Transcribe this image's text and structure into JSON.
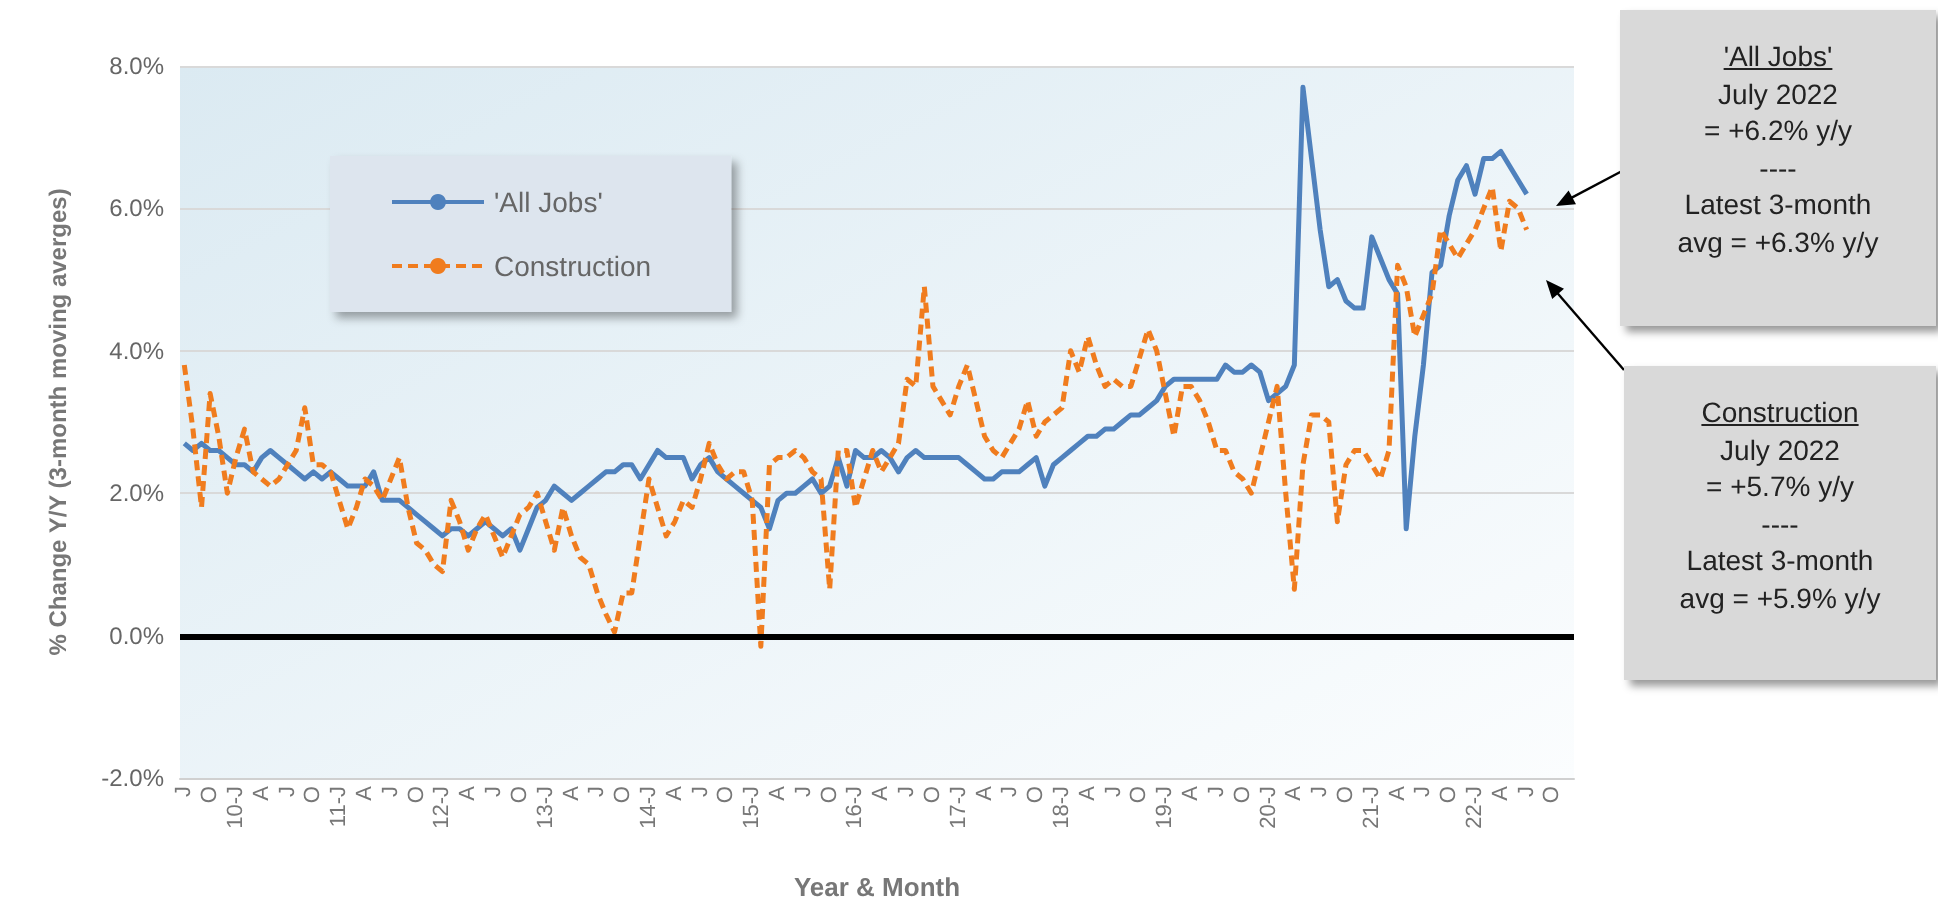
{
  "chart_data": {
    "type": "line",
    "xlabel": "Year & Month",
    "ylabel": "% Change Y/Y (3-month moving averges)",
    "categories": [
      "J",
      null,
      null,
      "O",
      null,
      null,
      "10-J",
      null,
      null,
      "A",
      null,
      null,
      "J",
      null,
      null,
      "O",
      null,
      null,
      "11-J",
      null,
      null,
      "A",
      null,
      null,
      "J",
      null,
      null,
      "O",
      null,
      null,
      "12-J",
      null,
      null,
      "A",
      null,
      null,
      "J",
      null,
      null,
      "O",
      null,
      null,
      "13-J",
      null,
      null,
      "A",
      null,
      null,
      "J",
      null,
      null,
      "O",
      null,
      null,
      "14-J",
      null,
      null,
      "A",
      null,
      null,
      "J",
      null,
      null,
      "O",
      null,
      null,
      "15-J",
      null,
      null,
      "A",
      null,
      null,
      "J",
      null,
      null,
      "O",
      null,
      null,
      "16-J",
      null,
      null,
      "A",
      null,
      null,
      "J",
      null,
      null,
      "O",
      null,
      null,
      "17-J",
      null,
      null,
      "A",
      null,
      null,
      "J",
      null,
      null,
      "O",
      null,
      null,
      "18-J",
      null,
      null,
      "A",
      null,
      null,
      "J",
      null,
      null,
      "O",
      null,
      null,
      "19-J",
      null,
      null,
      "A",
      null,
      null,
      "J",
      null,
      null,
      "O",
      null,
      null,
      "20-J",
      null,
      null,
      "A",
      null,
      null,
      "J",
      null,
      null,
      "O",
      null,
      null,
      "21-J",
      null,
      null,
      "A",
      null,
      null,
      "J",
      null,
      null,
      "O",
      null,
      null,
      "22-J",
      null,
      null,
      "A",
      null,
      null,
      "J",
      null,
      null,
      "O",
      null,
      null
    ],
    "series": [
      {
        "name": "'All Jobs'",
        "color": "#4f81bd",
        "line_style": "solid",
        "values": [
          2.7,
          2.6,
          2.7,
          2.6,
          2.6,
          2.5,
          2.4,
          2.4,
          2.3,
          2.5,
          2.6,
          2.5,
          2.4,
          2.3,
          2.2,
          2.3,
          2.2,
          2.3,
          2.2,
          2.1,
          2.1,
          2.1,
          2.3,
          1.9,
          1.9,
          1.9,
          1.8,
          1.7,
          1.6,
          1.5,
          1.4,
          1.5,
          1.5,
          1.4,
          1.5,
          1.6,
          1.5,
          1.4,
          1.5,
          1.2,
          1.5,
          1.8,
          1.9,
          2.1,
          2.0,
          1.9,
          2.0,
          2.1,
          2.2,
          2.3,
          2.3,
          2.4,
          2.4,
          2.2,
          2.4,
          2.6,
          2.5,
          2.5,
          2.5,
          2.2,
          2.4,
          2.5,
          2.3,
          2.2,
          2.1,
          2.0,
          1.9,
          1.8,
          1.5,
          1.9,
          2.0,
          2.0,
          2.1,
          2.2,
          2.0,
          2.1,
          2.5,
          2.1,
          2.6,
          2.5,
          2.5,
          2.6,
          2.5,
          2.3,
          2.5,
          2.6,
          2.5,
          2.5,
          2.5,
          2.5,
          2.5,
          2.4,
          2.3,
          2.2,
          2.2,
          2.3,
          2.3,
          2.3,
          2.4,
          2.5,
          2.1,
          2.4,
          2.5,
          2.6,
          2.7,
          2.8,
          2.8,
          2.9,
          2.9,
          3.0,
          3.1,
          3.1,
          3.2,
          3.3,
          3.5,
          3.6,
          3.6,
          3.6,
          3.6,
          3.6,
          3.6,
          3.8,
          3.7,
          3.7,
          3.8,
          3.7,
          3.3,
          3.4,
          3.5,
          3.8,
          7.7,
          6.7,
          5.7,
          4.9,
          5.0,
          4.7,
          4.6,
          4.6,
          5.6,
          5.3,
          5.0,
          4.8,
          1.5,
          2.8,
          3.8,
          5.1,
          5.2,
          5.9,
          6.4,
          6.6,
          6.2,
          6.7,
          6.7,
          6.8,
          6.6,
          6.4,
          6.2,
          null,
          null,
          null,
          null,
          null
        ]
      },
      {
        "name": "Construction",
        "color": "#f07c1e",
        "line_style": "dashed",
        "values": [
          3.8,
          2.9,
          1.8,
          3.4,
          2.8,
          2.0,
          2.5,
          2.9,
          2.3,
          2.2,
          2.1,
          2.2,
          2.4,
          2.6,
          3.2,
          2.4,
          2.4,
          2.3,
          1.9,
          1.5,
          1.8,
          2.2,
          2.1,
          1.9,
          2.2,
          2.5,
          1.8,
          1.3,
          1.2,
          1.0,
          0.9,
          1.9,
          1.6,
          1.2,
          1.5,
          1.7,
          1.4,
          1.1,
          1.4,
          1.7,
          1.8,
          2.0,
          1.6,
          1.2,
          1.8,
          1.4,
          1.1,
          1.0,
          0.6,
          0.3,
          0.05,
          0.6,
          0.6,
          1.4,
          2.2,
          1.8,
          1.4,
          1.6,
          1.9,
          1.8,
          2.2,
          2.7,
          2.4,
          2.2,
          2.3,
          2.3,
          1.9,
          -0.15,
          2.4,
          2.5,
          2.5,
          2.6,
          2.5,
          2.3,
          2.2,
          0.65,
          2.6,
          2.6,
          1.8,
          2.2,
          2.6,
          2.3,
          2.5,
          2.7,
          3.6,
          3.5,
          4.9,
          3.5,
          3.3,
          3.1,
          3.5,
          3.8,
          3.3,
          2.8,
          2.6,
          2.5,
          2.7,
          2.9,
          3.3,
          2.8,
          3.0,
          3.1,
          3.2,
          4.0,
          3.7,
          4.2,
          3.8,
          3.5,
          3.6,
          3.5,
          3.5,
          3.9,
          4.3,
          4.0,
          3.4,
          2.8,
          3.5,
          3.5,
          3.3,
          3.0,
          2.6,
          2.6,
          2.3,
          2.2,
          2.0,
          2.5,
          3.0,
          3.5,
          2.0,
          0.65,
          2.4,
          3.1,
          3.1,
          3.0,
          1.6,
          2.4,
          2.6,
          2.6,
          2.4,
          2.2,
          2.6,
          5.2,
          4.9,
          4.2,
          4.5,
          4.8,
          5.7,
          5.5,
          5.3,
          5.5,
          5.7,
          6.0,
          6.3,
          5.4,
          6.1,
          6.0,
          5.7,
          null,
          null,
          null,
          null,
          null
        ]
      }
    ],
    "ylim": [
      -2,
      8
    ],
    "yticks": [
      {
        "value": -2,
        "label": "-2.0%"
      },
      {
        "value": 0,
        "label": "0.0%"
      },
      {
        "value": 2,
        "label": "2.0%"
      },
      {
        "value": 4,
        "label": "4.0%"
      },
      {
        "value": 6,
        "label": "6.0%"
      },
      {
        "value": 8,
        "label": "8.0%"
      }
    ],
    "ref_lines": [
      {
        "axis": "y",
        "value": 0,
        "color": "#000000"
      }
    ],
    "grid": "y",
    "legend": "top left",
    "marker": "none",
    "annotations": [
      "'All Jobs'\nJuly 2022\n= +6.2% y/y\n----\nLatest 3-month\navg = +6.3% y/y",
      "Construction\nJuly 2022\n= +5.7% y/y\n----\nLatest 3-month\navg = +5.9% y/y"
    ]
  }
}
